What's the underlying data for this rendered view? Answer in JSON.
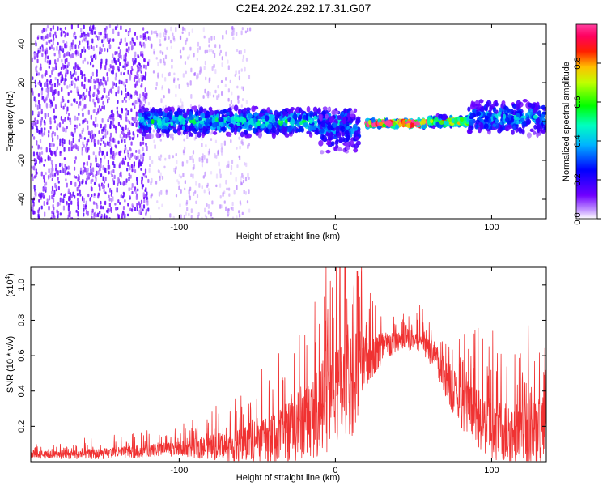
{
  "title": "C2E4.2024.292.17.31.G07",
  "colors": {
    "snr_line": "#f03232",
    "frame": "#000000",
    "scatter_base": "#6a1cf0",
    "background": "#ffffff"
  },
  "colorbar": {
    "label": "Normalized spectral amplitude",
    "colormap": "rainbow (purple-blue-cyan-green-yellow-red-magenta)",
    "range": [
      0,
      1
    ],
    "tick_labels": [
      "0.0",
      "0.2",
      "0.4",
      "0.6",
      "0.8"
    ]
  },
  "chart_data": [
    {
      "type": "heatmap",
      "title": "C2E4.2024.292.17.31.G07",
      "xlabel": "Height of straight line (km)",
      "ylabel": "Frequency (Hz)",
      "xlim": [
        -195,
        135
      ],
      "ylim": [
        -50,
        50
      ],
      "x_ticks": [
        -100,
        0,
        100
      ],
      "x_tick_labels": [
        "-100",
        "0",
        "100"
      ],
      "y_ticks": [
        -40,
        -20,
        0,
        20,
        40
      ],
      "y_tick_labels": [
        "-40",
        "-20",
        "0",
        "20",
        "40"
      ],
      "grid": false,
      "bands": [
        {
          "x_range": [
            -195,
            -120
          ],
          "freq_spread": [
            -50,
            50
          ],
          "amplitude": 0.1,
          "density": "high"
        },
        {
          "x_range": [
            -120,
            -55
          ],
          "freq_spread": [
            -50,
            50
          ],
          "amplitude": 0.05,
          "density": "sparse"
        },
        {
          "x_range": [
            -125,
            10
          ],
          "freq_center": 0,
          "freq_halfwidth": 8,
          "amplitude": 0.35
        },
        {
          "x_range": [
            -10,
            15
          ],
          "freq_center": -5,
          "freq_halfwidth": 12,
          "amplitude": 0.25
        },
        {
          "x_range": [
            20,
            60
          ],
          "freq_center": -1,
          "freq_halfwidth": 2,
          "amplitude": 0.95
        },
        {
          "x_range": [
            60,
            85
          ],
          "freq_center": 0,
          "freq_halfwidth": 3,
          "amplitude": 0.6
        },
        {
          "x_range": [
            85,
            135
          ],
          "freq_center": 2,
          "freq_halfwidth": 10,
          "amplitude": 0.3
        }
      ]
    },
    {
      "type": "line",
      "xlabel": "Height of straight line (km)",
      "ylabel": "SNR (10 * v/v)",
      "y_multiplier_label": "(x10",
      "y_multiplier_exponent": "4",
      "y_multiplier_close": ")",
      "xlim": [
        -195,
        135
      ],
      "ylim": [
        0,
        1.1
      ],
      "x_ticks": [
        -100,
        0,
        100
      ],
      "x_tick_labels": [
        "-100",
        "0",
        "100"
      ],
      "y_ticks": [
        0.2,
        0.4,
        0.6,
        0.8,
        1.0
      ],
      "y_tick_labels": [
        "0.2",
        "0.4",
        "0.6",
        "0.8",
        "1.0"
      ],
      "grid": false,
      "series": [
        {
          "envelope": {
            "x": [
              -195,
              -150,
              -100,
              -60,
              -40,
              -30,
              -20,
              -10,
              0,
              10,
              20,
              30,
              40,
              50,
              55,
              60,
              70,
              80,
              90,
              100,
              110,
              120,
              135
            ],
            "y": [
              0.04,
              0.05,
              0.08,
              0.11,
              0.15,
              0.2,
              0.28,
              0.34,
              0.42,
              0.5,
              0.6,
              0.66,
              0.69,
              0.7,
              0.71,
              0.66,
              0.5,
              0.38,
              0.28,
              0.22,
              0.2,
              0.19,
              0.18
            ]
          },
          "noise_amplitude": {
            "x": [
              -195,
              -100,
              -60,
              -40,
              -20,
              0,
              10,
              20,
              40,
              60,
              80,
              100,
              135
            ],
            "y": [
              0.02,
              0.04,
              0.1,
              0.14,
              0.22,
              0.3,
              0.32,
              0.15,
              0.05,
              0.08,
              0.15,
              0.18,
              0.2
            ]
          },
          "peak_max": [
            14,
            1.08
          ]
        }
      ]
    }
  ]
}
